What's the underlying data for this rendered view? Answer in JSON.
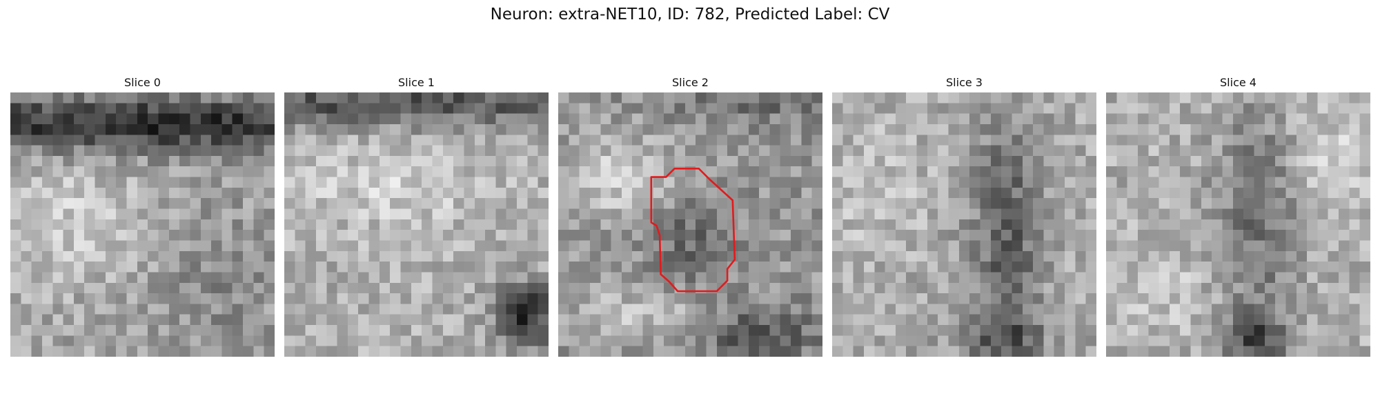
{
  "figure": {
    "title": "Neuron: extra-NET10, ID: 782, Predicted Label: CV"
  },
  "colormap": "gray",
  "contour_color": "#e31a1c",
  "panels": [
    {
      "label": "Slice 0",
      "has_contour": false
    },
    {
      "label": "Slice 1",
      "has_contour": false
    },
    {
      "label": "Slice 2",
      "has_contour": true
    },
    {
      "label": "Slice 3",
      "has_contour": false
    },
    {
      "label": "Slice 4",
      "has_contour": false
    }
  ]
}
